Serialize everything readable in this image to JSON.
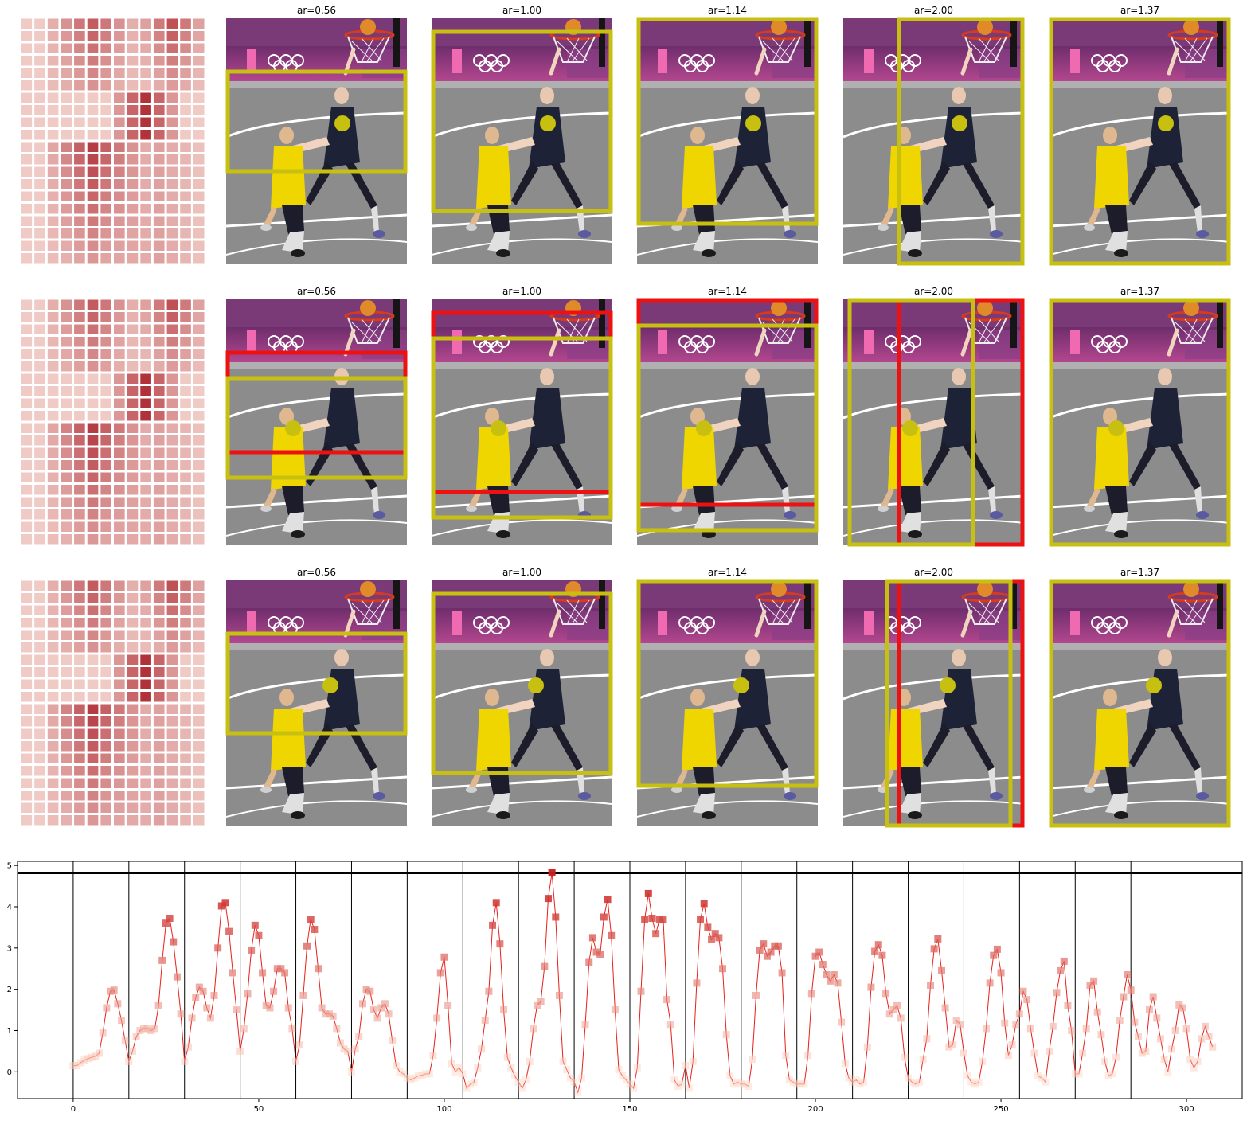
{
  "panel_rows": [
    {
      "titles": [
        "ar=0.56",
        "ar=1.00",
        "ar=1.14",
        "ar=2.00",
        "ar=1.37"
      ]
    },
    {
      "titles": [
        "ar=0.56",
        "ar=1.00",
        "ar=1.14",
        "ar=2.00",
        "ar=1.37"
      ]
    },
    {
      "titles": [
        "ar=0.56",
        "ar=1.00",
        "ar=1.14",
        "ar=2.00",
        "ar=1.37"
      ]
    }
  ],
  "colors": {
    "crop_box_yellow": "#c8c010",
    "crop_box_red": "#ee1111",
    "line": "#e8201a",
    "marker_high": "#c81e1e",
    "marker_low": "#fcd2c0",
    "reference_line": "#000000"
  },
  "chart_data": {
    "type": "line",
    "title": "",
    "xlabel": "",
    "ylabel": "",
    "xlim": [
      -15,
      315
    ],
    "ylim": [
      -0.65,
      5.1
    ],
    "xticks": [
      0,
      50,
      100,
      150,
      200,
      250,
      300
    ],
    "yticks": [
      0,
      1,
      2,
      3,
      4,
      5
    ],
    "grid": false,
    "reference_y": 4.82,
    "vertical_lines_x": [
      0,
      15,
      30,
      45,
      60,
      75,
      90,
      105,
      120,
      135,
      150,
      165,
      180,
      195,
      210,
      225,
      240,
      255,
      270,
      285
    ],
    "series": [
      {
        "values": [
          0.15,
          0.15,
          0.22,
          0.28,
          0.32,
          0.35,
          0.38,
          0.45,
          0.95,
          1.55,
          1.95,
          1.98,
          1.65,
          1.25,
          0.75,
          0.25,
          0.5,
          0.85,
          1.0,
          1.05,
          1.05,
          1.0,
          1.05,
          1.6,
          2.7,
          3.6,
          3.72,
          3.15,
          2.3,
          1.4,
          0.25,
          0.6,
          1.3,
          1.8,
          2.05,
          1.95,
          1.55,
          1.3,
          1.85,
          3.0,
          4.02,
          4.1,
          3.4,
          2.4,
          1.5,
          0.5,
          1.05,
          1.9,
          2.95,
          3.55,
          3.3,
          2.4,
          1.6,
          1.55,
          1.95,
          2.5,
          2.5,
          2.4,
          1.55,
          1.05,
          0.25,
          0.65,
          1.85,
          3.05,
          3.7,
          3.45,
          2.5,
          1.55,
          1.4,
          1.4,
          1.35,
          1.05,
          0.7,
          0.55,
          0.5,
          0.0,
          0.55,
          0.85,
          1.65,
          2.0,
          1.95,
          1.5,
          1.3,
          1.55,
          1.65,
          1.4,
          0.75,
          0.15,
          0.0,
          -0.05,
          -0.15,
          -0.2,
          -0.15,
          -0.1,
          -0.08,
          -0.05,
          -0.05,
          0.4,
          1.3,
          2.4,
          2.78,
          1.6,
          0.2,
          0.0,
          0.1,
          -0.05,
          -0.4,
          -0.3,
          -0.25,
          0.1,
          0.55,
          1.25,
          1.95,
          3.55,
          4.1,
          3.1,
          1.5,
          0.35,
          0.1,
          -0.1,
          -0.25,
          -0.4,
          -0.2,
          0.25,
          1.05,
          1.6,
          1.7,
          2.55,
          4.2,
          4.82,
          3.75,
          1.85,
          0.25,
          0.05,
          -0.15,
          -0.25,
          -0.5,
          -0.15,
          1.15,
          2.65,
          3.25,
          2.9,
          2.85,
          3.75,
          4.18,
          3.3,
          1.5,
          0.05,
          -0.1,
          -0.2,
          -0.3,
          -0.4,
          0.1,
          1.95,
          3.7,
          4.32,
          3.72,
          3.35,
          3.7,
          3.68,
          1.75,
          1.15,
          -0.2,
          -0.35,
          -0.3,
          0.15,
          -0.4,
          0.25,
          2.15,
          3.7,
          4.08,
          3.5,
          3.2,
          3.35,
          3.25,
          2.5,
          0.9,
          -0.1,
          -0.3,
          -0.25,
          -0.3,
          -0.3,
          -0.35,
          0.3,
          1.85,
          2.95,
          3.1,
          2.8,
          2.9,
          3.05,
          3.05,
          2.4,
          0.4,
          -0.2,
          -0.25,
          -0.3,
          -0.3,
          -0.3,
          0.4,
          1.9,
          2.8,
          2.9,
          2.6,
          2.35,
          2.2,
          2.35,
          2.15,
          1.2,
          0.2,
          -0.15,
          -0.25,
          -0.2,
          -0.3,
          -0.25,
          0.6,
          2.05,
          2.92,
          3.08,
          2.82,
          1.9,
          1.4,
          1.5,
          1.6,
          1.3,
          0.35,
          -0.15,
          -0.25,
          -0.3,
          -0.25,
          0.3,
          0.8,
          2.1,
          2.98,
          3.22,
          2.45,
          1.55,
          0.6,
          0.65,
          1.25,
          1.15,
          0.45,
          -0.1,
          -0.25,
          -0.3,
          -0.25,
          0.25,
          1.05,
          2.15,
          2.82,
          2.97,
          2.4,
          1.18,
          0.4,
          0.65,
          1.15,
          1.4,
          1.95,
          1.75,
          1.05,
          0.45,
          -0.1,
          -0.15,
          -0.25,
          0.5,
          1.1,
          1.92,
          2.45,
          2.68,
          1.6,
          1.0,
          -0.05,
          -0.05,
          0.45,
          1.05,
          2.1,
          2.2,
          1.45,
          0.9,
          0.25,
          -0.1,
          -0.05,
          0.35,
          1.25,
          1.82,
          2.35,
          1.98,
          1.2,
          0.85,
          0.45,
          0.5,
          1.5,
          1.82,
          1.3,
          0.8,
          0.3,
          0.0,
          0.55,
          1.0,
          1.62,
          1.55,
          1.05,
          0.3,
          0.1,
          0.25,
          0.8,
          1.1,
          0.85,
          0.6
        ]
      }
    ]
  }
}
